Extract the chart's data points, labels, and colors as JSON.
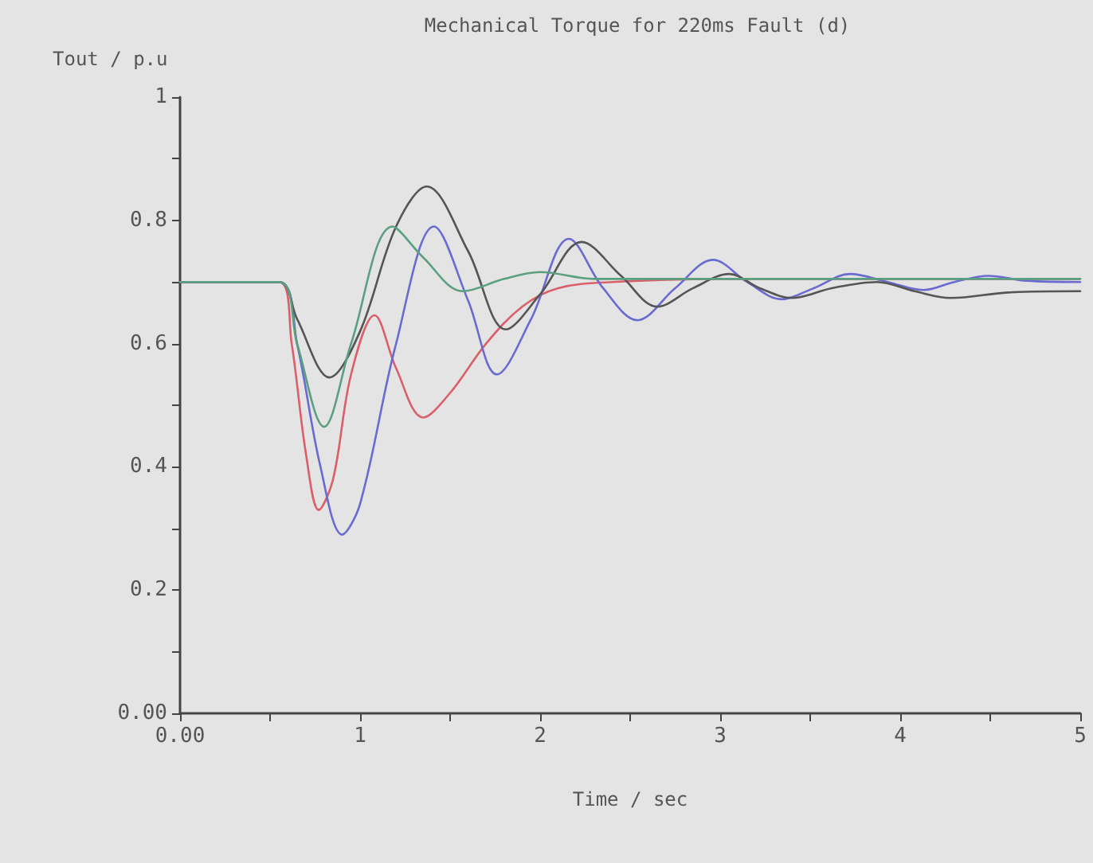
{
  "chart_data": {
    "type": "line",
    "title": "Mechanical Torque for 220ms Fault (d)",
    "xlabel": "Time / sec",
    "ylabel": "Tout / p.u",
    "xlim": [
      0,
      5
    ],
    "ylim": [
      0,
      1
    ],
    "xticks": [
      {
        "value": 0,
        "label": "0.00"
      },
      {
        "value": 0.5,
        "label": null
      },
      1,
      {
        "value": 1.5,
        "label": null
      },
      2,
      {
        "value": 2.5,
        "label": null
      },
      3,
      {
        "value": 3.5,
        "label": null
      },
      4,
      {
        "value": 4.5,
        "label": null
      },
      5
    ],
    "yticks": [
      {
        "value": 0,
        "label": "0.00"
      },
      {
        "value": 0.1,
        "label": null
      },
      {
        "value": 0.2,
        "label": "0.2"
      },
      {
        "value": 0.3,
        "label": null
      },
      {
        "value": 0.4,
        "label": "0.4"
      },
      {
        "value": 0.5,
        "label": null
      },
      {
        "value": 0.6,
        "label": "0.6"
      },
      {
        "value": 0.7,
        "label": null
      },
      {
        "value": 0.8,
        "label": "0.8"
      },
      {
        "value": 0.9,
        "label": null
      },
      1
    ],
    "grid": false,
    "marker": "none",
    "line_style": "solid",
    "series": [
      {
        "color": "#d9606a",
        "x": [
          0,
          0.55,
          0.62,
          0.7,
          0.77,
          0.85,
          0.95,
          1.08,
          1.2,
          1.35,
          1.5,
          1.7,
          1.9,
          2.1,
          2.4,
          3,
          5
        ],
        "values": [
          0.7,
          0.7,
          0.6,
          0.42,
          0.33,
          0.38,
          0.55,
          0.646,
          0.56,
          0.48,
          0.52,
          0.6,
          0.66,
          0.69,
          0.7,
          0.705,
          0.705
        ]
      },
      {
        "color": "#6a6ad0",
        "x": [
          0,
          0.55,
          0.65,
          0.78,
          0.9,
          1.0,
          1.2,
          1.41,
          1.6,
          1.76,
          1.95,
          2.16,
          2.35,
          2.54,
          2.75,
          2.96,
          3.15,
          3.34,
          3.52,
          3.72,
          3.93,
          4.13,
          4.3,
          4.49,
          4.7,
          5
        ],
        "values": [
          0.7,
          0.7,
          0.6,
          0.4,
          0.29,
          0.34,
          0.6,
          0.79,
          0.67,
          0.55,
          0.64,
          0.77,
          0.69,
          0.638,
          0.69,
          0.736,
          0.7,
          0.672,
          0.69,
          0.713,
          0.7,
          0.687,
          0.7,
          0.71,
          0.702,
          0.7
        ]
      },
      {
        "color": "#555555",
        "x": [
          0,
          0.55,
          0.65,
          0.83,
          1.0,
          1.2,
          1.37,
          1.6,
          1.81,
          2.0,
          2.23,
          2.45,
          2.65,
          2.85,
          3.05,
          3.22,
          3.4,
          3.62,
          3.87,
          4.08,
          4.28,
          4.6,
          5
        ],
        "values": [
          0.7,
          0.7,
          0.64,
          0.545,
          0.62,
          0.79,
          0.855,
          0.75,
          0.623,
          0.68,
          0.765,
          0.71,
          0.66,
          0.69,
          0.713,
          0.69,
          0.674,
          0.69,
          0.7,
          0.685,
          0.674,
          0.683,
          0.685
        ]
      },
      {
        "color": "#5aa080",
        "x": [
          0,
          0.55,
          0.65,
          0.8,
          0.95,
          1.18,
          1.35,
          1.57,
          1.8,
          2.0,
          2.3,
          5
        ],
        "values": [
          0.7,
          0.7,
          0.6,
          0.465,
          0.6,
          0.79,
          0.74,
          0.685,
          0.705,
          0.716,
          0.705,
          0.705
        ]
      }
    ]
  }
}
